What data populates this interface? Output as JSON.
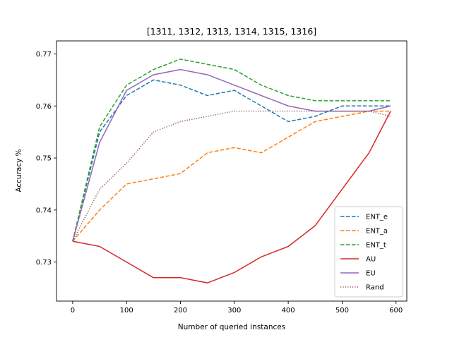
{
  "chart_data": {
    "type": "line",
    "title": "[1311, 1312, 1313, 1314, 1315, 1316]",
    "xlabel": "Number of queried instances",
    "ylabel": "Accuracy %",
    "xlim": [
      -30,
      620
    ],
    "ylim": [
      0.7225,
      0.7725
    ],
    "xticks": [
      0,
      100,
      200,
      300,
      400,
      500,
      600
    ],
    "yticks": [
      0.73,
      0.74,
      0.75,
      0.76,
      0.77
    ],
    "xtick_labels": [
      "0",
      "100",
      "200",
      "300",
      "400",
      "500",
      "600"
    ],
    "ytick_labels": [
      "0.73",
      "0.74",
      "0.75",
      "0.76",
      "0.77"
    ],
    "grid": false,
    "legend_position": "lower-right",
    "x": [
      0,
      50,
      100,
      150,
      200,
      250,
      300,
      350,
      400,
      450,
      500,
      550,
      590
    ],
    "series": [
      {
        "name": "ENT_e",
        "color": "#1f77b4",
        "dash": "dashed",
        "values": [
          0.734,
          0.755,
          0.762,
          0.765,
          0.764,
          0.762,
          0.763,
          0.76,
          0.757,
          0.758,
          0.76,
          0.76,
          0.76
        ]
      },
      {
        "name": "ENT_a",
        "color": "#ff7f0e",
        "dash": "dashed",
        "values": [
          0.734,
          0.74,
          0.745,
          0.746,
          0.747,
          0.751,
          0.752,
          0.751,
          0.754,
          0.757,
          0.758,
          0.759,
          0.759
        ]
      },
      {
        "name": "ENT_t",
        "color": "#2ca02c",
        "dash": "dashed",
        "values": [
          0.734,
          0.756,
          0.764,
          0.767,
          0.769,
          0.768,
          0.767,
          0.764,
          0.762,
          0.761,
          0.761,
          0.761,
          0.761
        ]
      },
      {
        "name": "AU",
        "color": "#d62728",
        "dash": "solid",
        "values": [
          0.734,
          0.733,
          0.73,
          0.727,
          0.727,
          0.726,
          0.728,
          0.731,
          0.733,
          0.737,
          0.744,
          0.751,
          0.759
        ]
      },
      {
        "name": "EU",
        "color": "#9467bd",
        "dash": "solid",
        "values": [
          0.734,
          0.753,
          0.763,
          0.766,
          0.767,
          0.766,
          0.764,
          0.762,
          0.76,
          0.759,
          0.759,
          0.759,
          0.76
        ]
      },
      {
        "name": "Rand",
        "color": "#8c564b",
        "dash": "dotted",
        "values": [
          0.734,
          0.744,
          0.749,
          0.755,
          0.757,
          0.758,
          0.759,
          0.759,
          0.759,
          0.759,
          0.759,
          0.759,
          0.758
        ]
      }
    ]
  }
}
